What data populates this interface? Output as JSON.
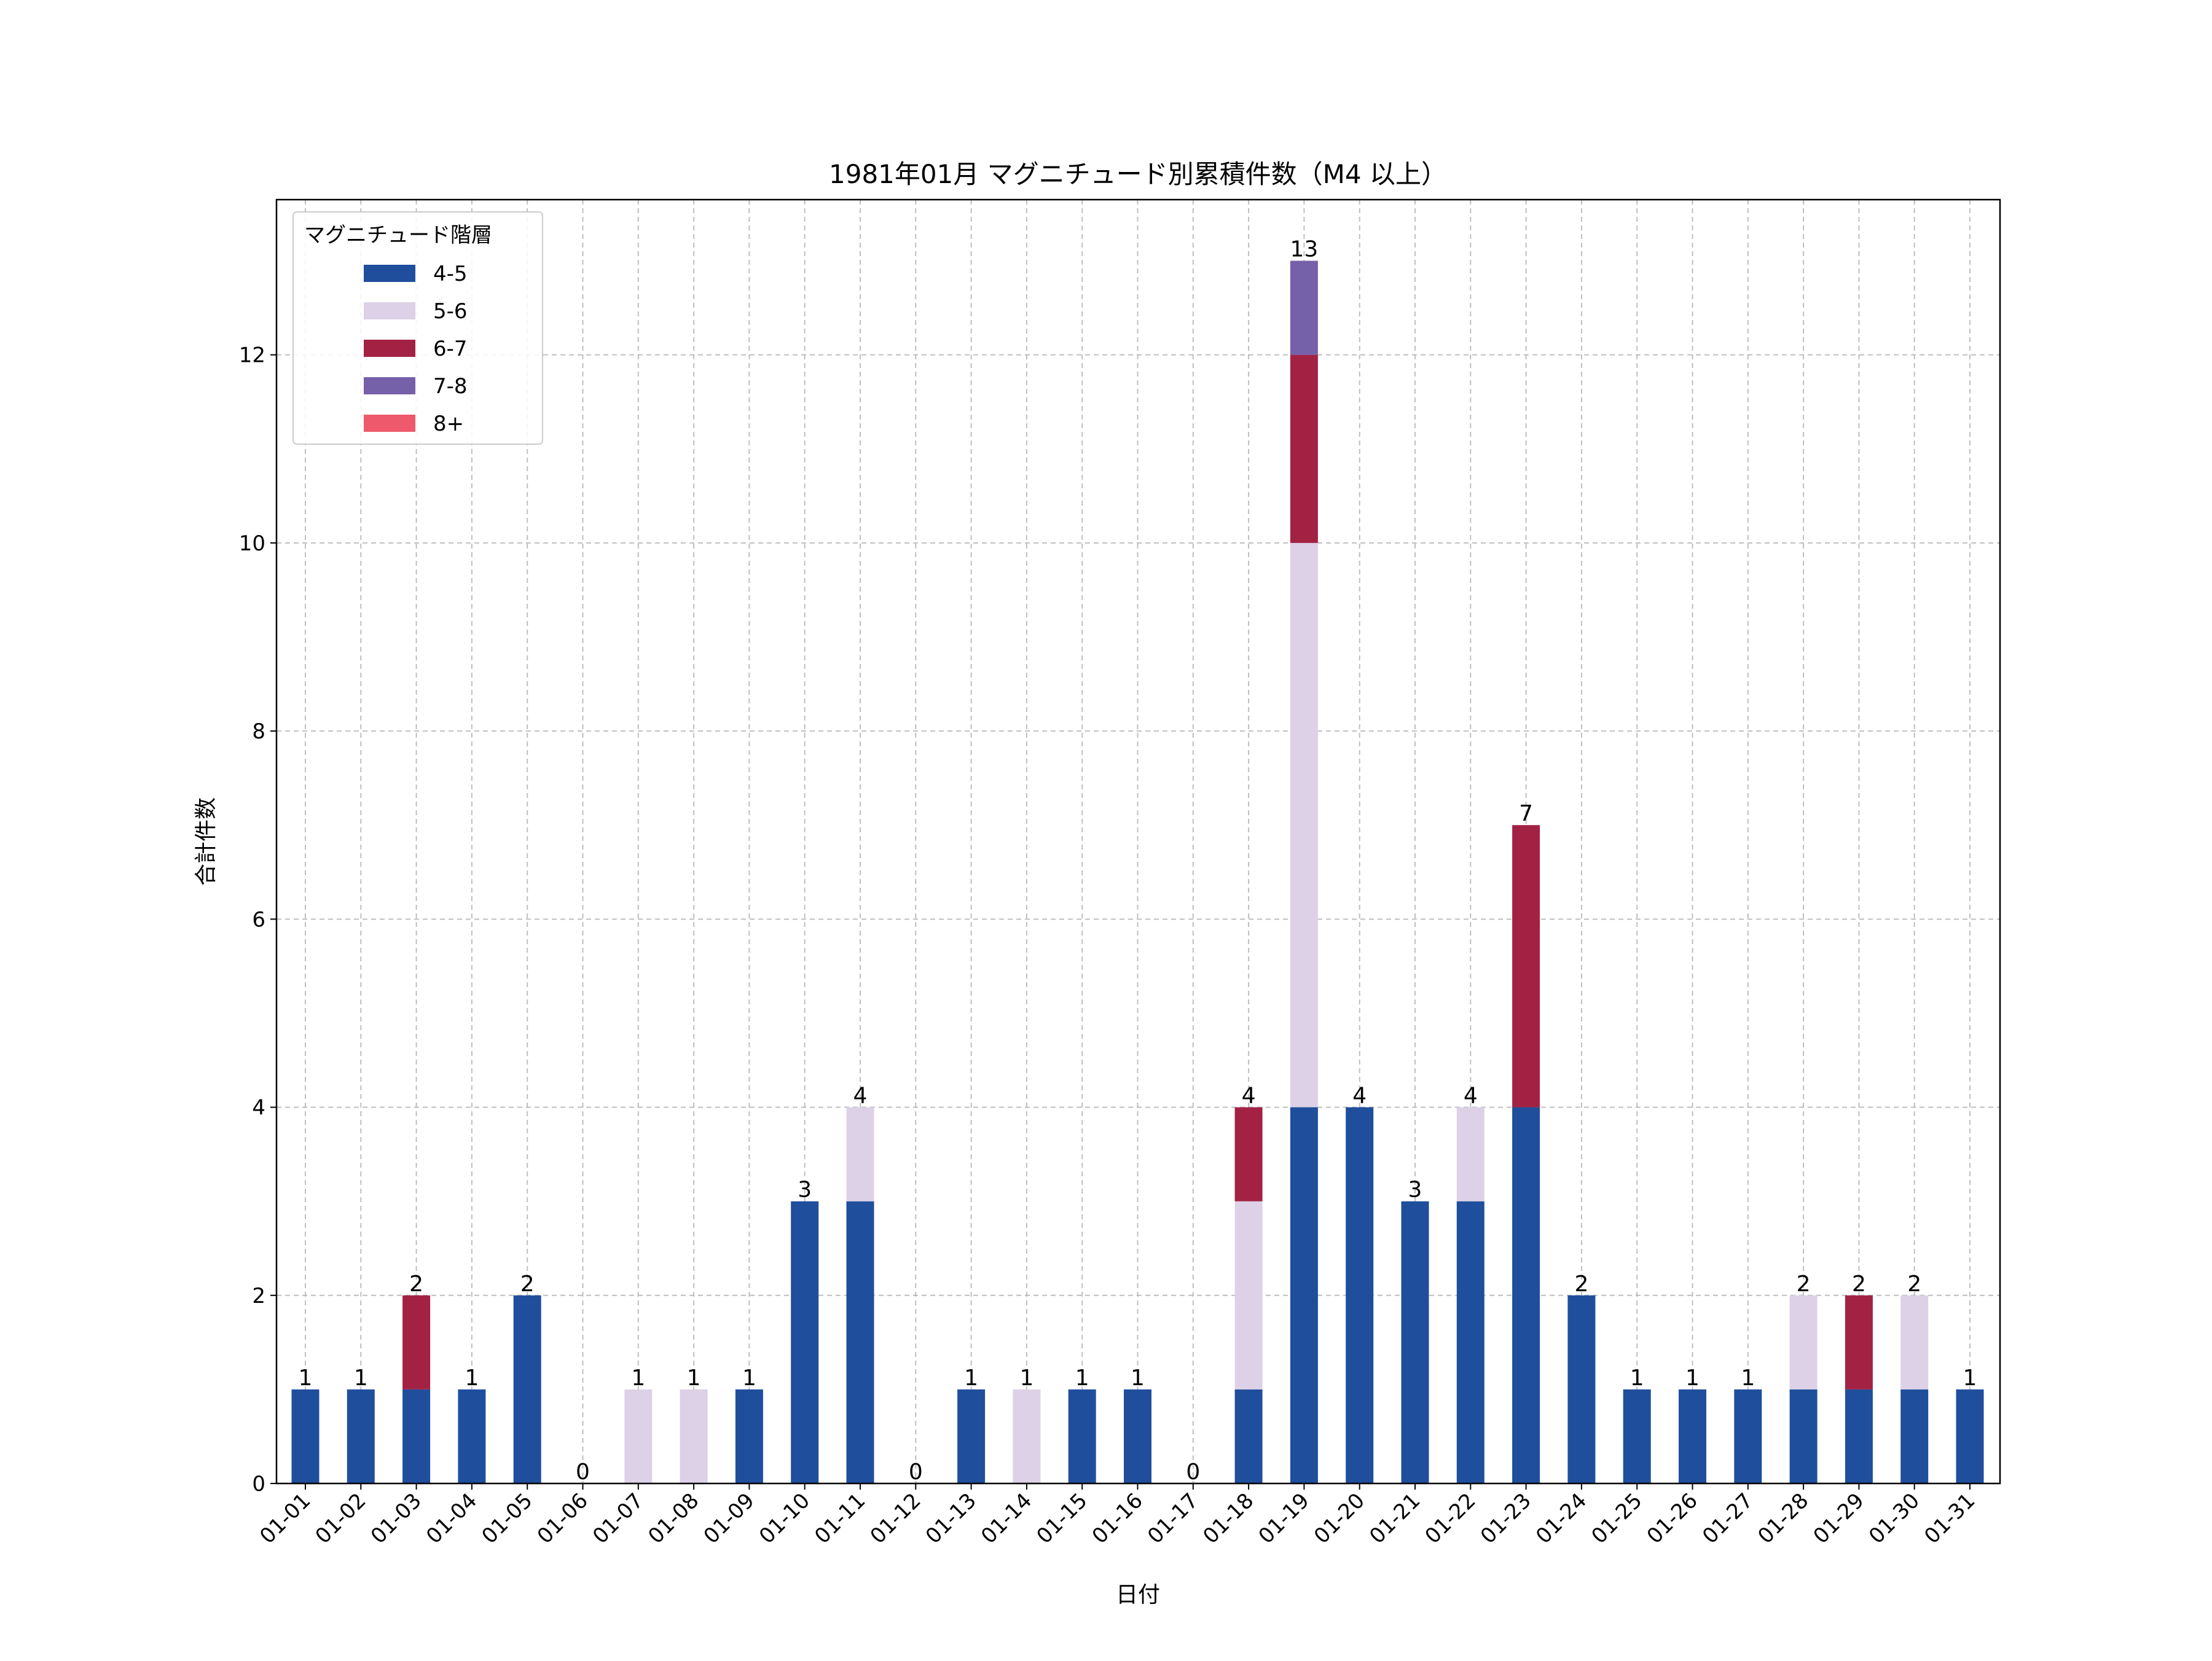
{
  "chart_data": {
    "type": "bar",
    "stacked": true,
    "title": "1981年01月 マグニチュード別累積件数（M4 以上）",
    "xlabel": "日付",
    "ylabel": "合計件数",
    "ylim": [
      0,
      13.65
    ],
    "yticks": [
      0,
      2,
      4,
      6,
      8,
      10,
      12
    ],
    "grid": true,
    "legend": {
      "title": "マグニチュード階層",
      "placement": "top-left"
    },
    "categories": [
      "01-01",
      "01-02",
      "01-03",
      "01-04",
      "01-05",
      "01-06",
      "01-07",
      "01-08",
      "01-09",
      "01-10",
      "01-11",
      "01-12",
      "01-13",
      "01-14",
      "01-15",
      "01-16",
      "01-17",
      "01-18",
      "01-19",
      "01-20",
      "01-21",
      "01-22",
      "01-23",
      "01-24",
      "01-25",
      "01-26",
      "01-27",
      "01-28",
      "01-29",
      "01-30",
      "01-31"
    ],
    "series": [
      {
        "name": "4-5",
        "color": "#1f4e9c",
        "values": [
          1,
          1,
          1,
          1,
          2,
          0,
          0,
          0,
          1,
          3,
          3,
          0,
          1,
          0,
          1,
          1,
          0,
          1,
          4,
          4,
          3,
          3,
          4,
          2,
          1,
          1,
          1,
          1,
          1,
          1,
          1
        ]
      },
      {
        "name": "5-6",
        "color": "#dcd1e6",
        "values": [
          0,
          0,
          0,
          0,
          0,
          0,
          1,
          1,
          0,
          0,
          1,
          0,
          0,
          1,
          0,
          0,
          0,
          2,
          6,
          0,
          0,
          1,
          0,
          0,
          0,
          0,
          0,
          1,
          0,
          1,
          0
        ]
      },
      {
        "name": "6-7",
        "color": "#a32244",
        "values": [
          0,
          0,
          1,
          0,
          0,
          0,
          0,
          0,
          0,
          0,
          0,
          0,
          0,
          0,
          0,
          0,
          0,
          1,
          2,
          0,
          0,
          0,
          3,
          0,
          0,
          0,
          0,
          0,
          1,
          0,
          0
        ]
      },
      {
        "name": "7-8",
        "color": "#7560aa",
        "values": [
          0,
          0,
          0,
          0,
          0,
          0,
          0,
          0,
          0,
          0,
          0,
          0,
          0,
          0,
          0,
          0,
          0,
          0,
          1,
          0,
          0,
          0,
          0,
          0,
          0,
          0,
          0,
          0,
          0,
          0,
          0
        ]
      },
      {
        "name": "8+",
        "color": "#ee5a6b",
        "values": [
          0,
          0,
          0,
          0,
          0,
          0,
          0,
          0,
          0,
          0,
          0,
          0,
          0,
          0,
          0,
          0,
          0,
          0,
          0,
          0,
          0,
          0,
          0,
          0,
          0,
          0,
          0,
          0,
          0,
          0,
          0
        ]
      }
    ],
    "totals": [
      1,
      1,
      2,
      1,
      2,
      0,
      1,
      1,
      1,
      3,
      4,
      0,
      1,
      1,
      1,
      1,
      0,
      4,
      13,
      4,
      3,
      4,
      7,
      2,
      1,
      1,
      1,
      2,
      2,
      2,
      1
    ]
  }
}
